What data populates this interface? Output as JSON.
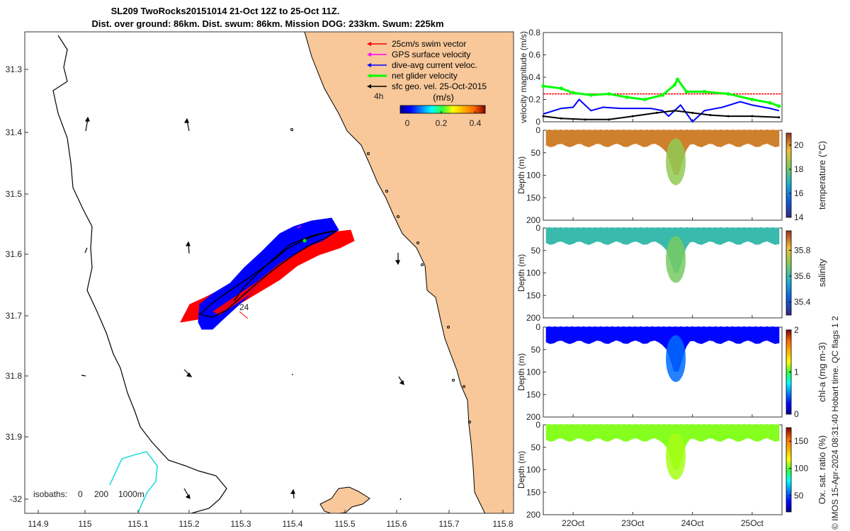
{
  "title": {
    "line1": "SL209 TwoRocks20151014 21-Oct 12Z to 25-Oct 11Z.",
    "line2": "Dist. over ground: 86km. Dist. swum: 86km. Mission DOG: 233km. Swum: 225km"
  },
  "colors": {
    "land": "#f8c89a",
    "swim": "#ff0000",
    "gps": "#ff00ff",
    "dive": "#0000ff",
    "net": "#00ff00",
    "geo": "#000000",
    "isobath200": "#000000",
    "isobath1000": "#22dddd"
  },
  "map": {
    "xticks": [
      "114.9",
      "115",
      "115.1",
      "115.2",
      "115.3",
      "115.4",
      "115.5",
      "115.6",
      "115.7",
      "115.8"
    ],
    "yticks": [
      "31.3",
      "31.4",
      "31.5",
      "31.6",
      "31.7",
      "31.8",
      "31.9",
      "-32"
    ],
    "time_label": "4h",
    "day_label": "24",
    "legend": [
      {
        "label": "25cm/s swim vector",
        "key": "swim"
      },
      {
        "label": "GPS surface velocity",
        "key": "gps"
      },
      {
        "label": "dive-avg current veloc.",
        "key": "dive"
      },
      {
        "label": "net glider velocity",
        "key": "net"
      },
      {
        "label": "sfc geo. vel. 25-Oct-2015",
        "key": "geo"
      }
    ],
    "colorbar": {
      "label": "(m/s)",
      "ticks": [
        "0",
        "0.2",
        "0.4"
      ],
      "range": [
        0,
        0.5
      ]
    },
    "isobaths_text": {
      "prefix": "isobaths:",
      "v0": "0",
      "v200": "200",
      "v1000": "1000m"
    }
  },
  "footer": "© IMOS 15-Apr-2024 08:31:40 Hobart time. QC flags 1  2",
  "chart_data": [
    {
      "type": "line",
      "title": "velocity magnitude",
      "ylabel": "velocity magnitude (m/s)",
      "ylim": [
        0,
        0.8
      ],
      "yticks": [
        "0",
        "0.2",
        "0.4",
        "0.6",
        "0.8"
      ],
      "xlim": [
        21.5,
        25.5
      ],
      "xticks": [
        "22Oct",
        "23Oct",
        "24Oct",
        "25Oct"
      ],
      "series": [
        {
          "name": "swim vector",
          "color": "#ff0000",
          "x": [
            21.5,
            25.5
          ],
          "y": [
            0.25,
            0.25
          ]
        },
        {
          "name": "net glider velocity",
          "color": "#00ff00",
          "x": [
            21.5,
            21.8,
            22.0,
            22.3,
            22.6,
            22.9,
            23.2,
            23.5,
            23.7,
            23.75,
            23.9,
            24.2,
            24.6,
            25.0,
            25.3,
            25.45
          ],
          "y": [
            0.32,
            0.3,
            0.26,
            0.24,
            0.25,
            0.22,
            0.2,
            0.24,
            0.33,
            0.38,
            0.27,
            0.27,
            0.25,
            0.2,
            0.17,
            0.14
          ]
        },
        {
          "name": "dive-avg current",
          "color": "#0000ff",
          "x": [
            21.5,
            21.8,
            22.0,
            22.1,
            22.3,
            22.5,
            22.8,
            23.0,
            23.3,
            23.5,
            23.6,
            23.8,
            24.0,
            24.2,
            24.5,
            24.8,
            25.0,
            25.3,
            25.45
          ],
          "y": [
            0.07,
            0.12,
            0.13,
            0.2,
            0.1,
            0.13,
            0.12,
            0.12,
            0.12,
            0.1,
            0.05,
            0.15,
            0.0,
            0.1,
            0.13,
            0.18,
            0.15,
            0.12,
            0.1
          ]
        },
        {
          "name": "sfc geo. velocity",
          "color": "#000000",
          "x": [
            21.5,
            21.8,
            22.2,
            22.6,
            23.0,
            23.4,
            23.7,
            24.0,
            24.3,
            24.6,
            25.0,
            25.45
          ],
          "y": [
            0.05,
            0.03,
            0.02,
            0.02,
            0.05,
            0.08,
            0.1,
            0.08,
            0.06,
            0.05,
            0.05,
            0.04
          ]
        }
      ]
    },
    {
      "type": "heatmap",
      "ylabel": "Depth (m)",
      "cblabel": "temperature (°C)",
      "ylim": [
        200,
        0
      ],
      "yticks": [
        "0",
        "50",
        "100",
        "150",
        "200"
      ],
      "clim": [
        14,
        21
      ],
      "cbticks": [
        "14",
        "16",
        "18",
        "20"
      ],
      "surface_value": 20.2,
      "trough_value": 18.4,
      "colormap": "parula"
    },
    {
      "type": "heatmap",
      "ylabel": "Depth (m)",
      "cblabel": "salinity",
      "ylim": [
        200,
        0
      ],
      "yticks": [
        "0",
        "50",
        "100",
        "150",
        "200"
      ],
      "clim": [
        35.3,
        35.95
      ],
      "cbticks": [
        "35.4",
        "35.6",
        "35.8"
      ],
      "surface_value": 35.6,
      "trough_value": 35.68,
      "colormap": "parula"
    },
    {
      "type": "heatmap",
      "ylabel": "Depth (m)",
      "cblabel": "chl-a (mg m-3)",
      "ylim": [
        200,
        0
      ],
      "yticks": [
        "0",
        "50",
        "100",
        "150",
        "200"
      ],
      "clim": [
        0,
        2
      ],
      "cbticks": [
        "0",
        "1",
        "2"
      ],
      "surface_value": 0.25,
      "trough_value": 0.45,
      "colormap": "jet"
    },
    {
      "type": "heatmap",
      "ylabel": "Depth (m)",
      "cblabel": "Ox. sat. ratio (%)",
      "ylim": [
        200,
        0
      ],
      "yticks": [
        "0",
        "50",
        "100",
        "150",
        "200"
      ],
      "xticks": [
        "22Oct",
        "23Oct",
        "24Oct",
        "25Oct"
      ],
      "clim": [
        20,
        175
      ],
      "cbticks": [
        "50",
        "100",
        "150"
      ],
      "surface_value": 105,
      "trough_value": 108,
      "colormap": "jet"
    }
  ]
}
